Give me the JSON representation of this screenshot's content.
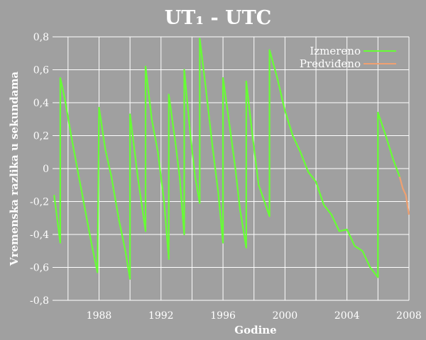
{
  "chart_data": {
    "type": "line",
    "title": "UT₁ - UTC",
    "xlabel": "Godine",
    "ylabel": "Vremenska razlika u sekundama",
    "xlim": [
      1985.0,
      2008.0
    ],
    "ylim": [
      -0.8,
      0.8
    ],
    "grid": true,
    "legend_position": "top-right",
    "colors": {
      "background": "#a0a0a0",
      "grid": "#ffffff",
      "measured": "#66ff33",
      "predicted": "#f0a070"
    },
    "x_ticks": [
      {
        "value": 1988,
        "label": "1988"
      },
      {
        "value": 1992,
        "label": "1992"
      },
      {
        "value": 1996,
        "label": "1996"
      },
      {
        "value": 2000,
        "label": "2000"
      },
      {
        "value": 2004,
        "label": "2004"
      },
      {
        "value": 2008,
        "label": "2008"
      }
    ],
    "y_ticks": [
      {
        "value": 0.8,
        "label": "0,8"
      },
      {
        "value": 0.6,
        "label": "0,6"
      },
      {
        "value": 0.4,
        "label": "0,4"
      },
      {
        "value": 0.2,
        "label": "0,2"
      },
      {
        "value": 0.0,
        "label": "0"
      },
      {
        "value": -0.2,
        "label": "-0,2"
      },
      {
        "value": -0.4,
        "label": "-0,4"
      },
      {
        "value": -0.6,
        "label": "-0,6"
      },
      {
        "value": -0.8,
        "label": "-0,8"
      }
    ],
    "series": [
      {
        "name": "Izmereno",
        "points": [
          [
            1985.1,
            -0.16
          ],
          [
            1985.5,
            -0.45
          ],
          [
            1985.5,
            0.55
          ],
          [
            1985.8,
            0.42
          ],
          [
            1986.2,
            0.2
          ],
          [
            1986.6,
            0.0
          ],
          [
            1987.0,
            -0.2
          ],
          [
            1987.5,
            -0.45
          ],
          [
            1987.9,
            -0.63
          ],
          [
            1988.0,
            0.37
          ],
          [
            1988.4,
            0.12
          ],
          [
            1988.8,
            -0.05
          ],
          [
            1989.3,
            -0.32
          ],
          [
            1989.7,
            -0.5
          ],
          [
            1990.0,
            -0.67
          ],
          [
            1990.0,
            0.33
          ],
          [
            1990.5,
            -0.05
          ],
          [
            1991.0,
            -0.38
          ],
          [
            1991.0,
            0.62
          ],
          [
            1991.4,
            0.3
          ],
          [
            1991.8,
            0.1
          ],
          [
            1992.2,
            -0.2
          ],
          [
            1992.5,
            -0.55
          ],
          [
            1992.5,
            0.45
          ],
          [
            1992.9,
            0.18
          ],
          [
            1993.2,
            -0.05
          ],
          [
            1993.5,
            -0.4
          ],
          [
            1993.5,
            0.6
          ],
          [
            1993.9,
            0.2
          ],
          [
            1994.2,
            -0.05
          ],
          [
            1994.5,
            -0.21
          ],
          [
            1994.5,
            0.79
          ],
          [
            1994.9,
            0.48
          ],
          [
            1995.3,
            0.15
          ],
          [
            1995.7,
            -0.15
          ],
          [
            1996.0,
            -0.45
          ],
          [
            1996.0,
            0.55
          ],
          [
            1996.4,
            0.28
          ],
          [
            1996.8,
            0.0
          ],
          [
            1997.1,
            -0.25
          ],
          [
            1997.5,
            -0.48
          ],
          [
            1997.5,
            0.53
          ],
          [
            1997.9,
            0.2
          ],
          [
            1998.3,
            -0.1
          ],
          [
            1998.6,
            -0.18
          ],
          [
            1999.0,
            -0.29
          ],
          [
            1999.0,
            0.72
          ],
          [
            1999.5,
            0.55
          ],
          [
            2000.0,
            0.35
          ],
          [
            2000.5,
            0.2
          ],
          [
            2001.0,
            0.1
          ],
          [
            2001.5,
            -0.02
          ],
          [
            2002.0,
            -0.08
          ],
          [
            2002.5,
            -0.22
          ],
          [
            2003.0,
            -0.28
          ],
          [
            2003.5,
            -0.38
          ],
          [
            2004.0,
            -0.37
          ],
          [
            2004.5,
            -0.47
          ],
          [
            2005.0,
            -0.5
          ],
          [
            2005.5,
            -0.6
          ],
          [
            2006.0,
            -0.66
          ],
          [
            2006.0,
            0.34
          ],
          [
            2006.5,
            0.2
          ],
          [
            2007.0,
            0.05
          ],
          [
            2007.4,
            -0.05
          ]
        ]
      },
      {
        "name": "Predviđeno",
        "points": [
          [
            2007.4,
            -0.05
          ],
          [
            2007.6,
            -0.12
          ],
          [
            2007.8,
            -0.16
          ],
          [
            2008.0,
            -0.28
          ]
        ]
      }
    ]
  }
}
